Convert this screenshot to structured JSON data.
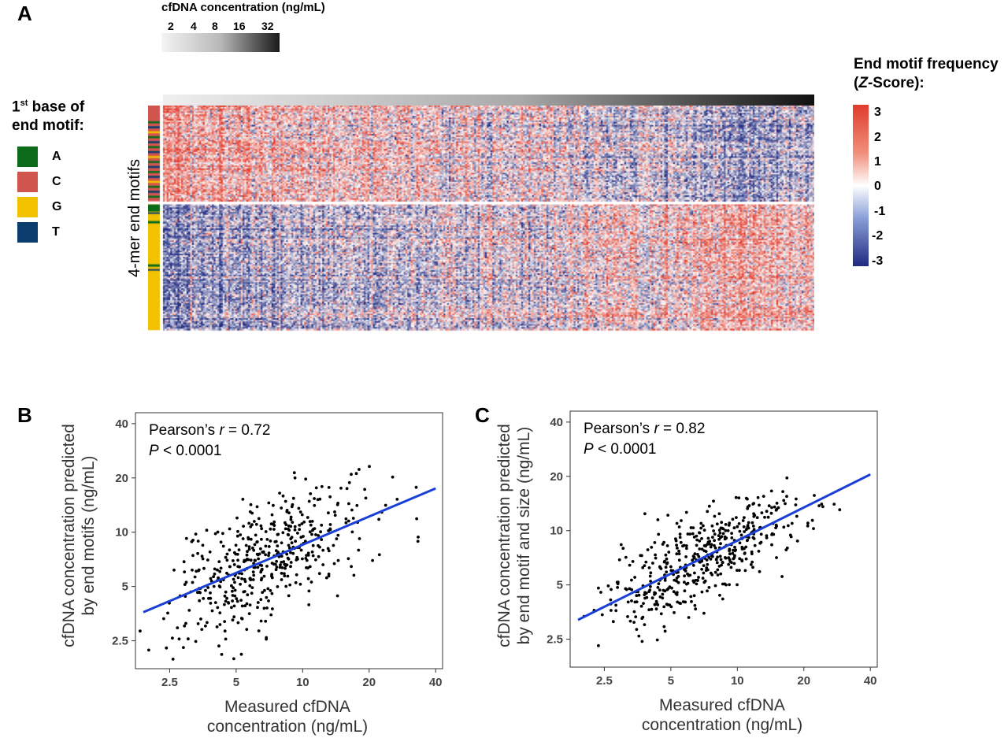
{
  "panels": {
    "a": "A",
    "b": "B",
    "c": "C"
  },
  "colorbar_top": {
    "title": "cfDNA concentration (ng/mL)",
    "ticks": [
      "2",
      "4",
      "8",
      "16",
      "32"
    ]
  },
  "base_legend": {
    "title_prefix": "1",
    "title_sup": "st",
    "title_line1_rest": " base of",
    "title_line2": "end motif:",
    "items": [
      {
        "label": "A",
        "color": "#0b6b1b"
      },
      {
        "label": "C",
        "color": "#d0554f"
      },
      {
        "label": "G",
        "color": "#f2c100"
      },
      {
        "label": "T",
        "color": "#0b3e6e"
      }
    ]
  },
  "zscore_legend": {
    "title_line1": "End motif frequency",
    "title_line2_prefix": "(",
    "title_line2_italic": "Z",
    "title_line2_suffix": "-Score):",
    "ticks": [
      "3",
      "2",
      "1",
      "0",
      "-1",
      "-2",
      "-3"
    ],
    "colors": {
      "high": "#e03c2c",
      "mid": "#ffffff",
      "low": "#1f2a80"
    }
  },
  "heatmap": {
    "ylabel": "4-mer end motifs",
    "row_groups": [
      {
        "name": "upper",
        "pattern": "mostly-positive-left"
      },
      {
        "name": "lower",
        "pattern": "mostly-negative-left"
      }
    ]
  },
  "chart_data": [
    {
      "type": "scatter",
      "panel": "B",
      "xlabel": "Measured cfDNA concentration (ng/mL)",
      "xlabel_lines": [
        "Measured cfDNA",
        "concentration (ng/mL)"
      ],
      "ylabel_lines": [
        "cfDNA concentration predicted",
        "by end motifs (ng/mL)"
      ],
      "x_scale": "log",
      "y_scale": "log",
      "xlim": [
        1.75,
        43
      ],
      "ylim": [
        1.75,
        46
      ],
      "x_ticks": [
        2.5,
        5,
        10,
        20,
        40
      ],
      "y_ticks": [
        2.5,
        5,
        10,
        20,
        40
      ],
      "x_tick_labels": [
        "2.5",
        "5",
        "10",
        "20",
        "40"
      ],
      "y_tick_labels": [
        "2.5",
        "5",
        "10",
        "20",
        "40"
      ],
      "annotation": {
        "prefix": "Pearson’s ",
        "r_symbol": "r",
        "r_text": " = 0.72",
        "p_symbol": "P",
        "p_text": " < 0.0001"
      },
      "pearson_r": 0.72,
      "fit_line": {
        "x": [
          1.9,
          40
        ],
        "y": [
          3.6,
          17.5
        ],
        "color": "#1a3fd6"
      },
      "n_points": 480,
      "point_color": "#000000"
    },
    {
      "type": "scatter",
      "panel": "C",
      "xlabel": "Measured cfDNA concentration (ng/mL)",
      "xlabel_lines": [
        "Measured cfDNA",
        "concentration (ng/mL)"
      ],
      "ylabel_lines": [
        "cfDNA concentration predicted",
        "by end motif and size (ng/mL)"
      ],
      "x_scale": "log",
      "y_scale": "log",
      "xlim": [
        1.75,
        43
      ],
      "ylim": [
        1.75,
        46
      ],
      "x_ticks": [
        2.5,
        5,
        10,
        20,
        40
      ],
      "y_ticks": [
        2.5,
        5,
        10,
        20,
        40
      ],
      "x_tick_labels": [
        "2.5",
        "5",
        "10",
        "20",
        "40"
      ],
      "y_tick_labels": [
        "2.5",
        "5",
        "10",
        "20",
        "40"
      ],
      "annotation": {
        "prefix": "Pearson’s ",
        "r_symbol": "r",
        "r_text": " = 0.82",
        "p_symbol": "P",
        "p_text": " < 0.0001"
      },
      "pearson_r": 0.82,
      "fit_line": {
        "x": [
          1.9,
          40
        ],
        "y": [
          3.2,
          20.5
        ],
        "color": "#1a3fd6"
      },
      "n_points": 480,
      "point_color": "#000000"
    }
  ]
}
